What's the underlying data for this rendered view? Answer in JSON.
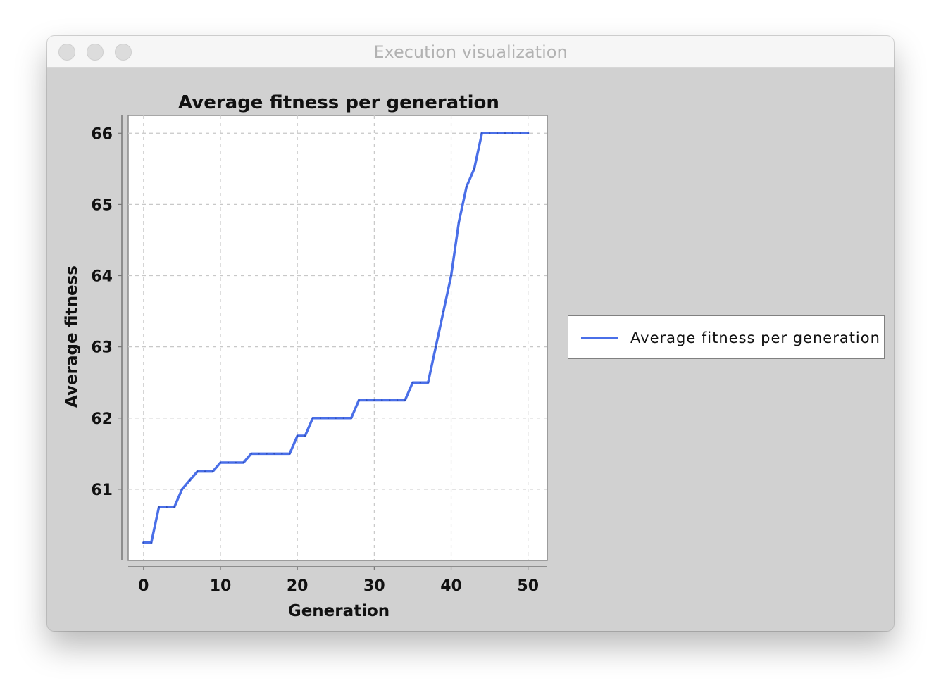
{
  "window": {
    "title": "Execution visualization"
  },
  "chart_data": {
    "type": "line",
    "title": "Average fitness per generation",
    "xlabel": "Generation",
    "ylabel": "Average fitness",
    "xlim": [
      -2,
      52.5
    ],
    "ylim": [
      60,
      66.25
    ],
    "xticks": [
      0,
      10,
      20,
      30,
      40,
      50
    ],
    "yticks": [
      61,
      62,
      63,
      64,
      65,
      66
    ],
    "grid": true,
    "legend": "right",
    "series": [
      {
        "name": "Average fitness per generation",
        "color": "#4a6fe8",
        "x": [
          0,
          1,
          2,
          3,
          4,
          5,
          6,
          7,
          8,
          9,
          10,
          11,
          12,
          13,
          14,
          15,
          16,
          17,
          18,
          19,
          20,
          21,
          22,
          23,
          24,
          25,
          26,
          27,
          28,
          29,
          30,
          31,
          32,
          33,
          34,
          35,
          36,
          37,
          38,
          39,
          40,
          41,
          42,
          43,
          44,
          45,
          46,
          47,
          48,
          49,
          50
        ],
        "y": [
          60.25,
          60.25,
          60.75,
          60.75,
          60.75,
          61.0,
          61.125,
          61.25,
          61.25,
          61.25,
          61.375,
          61.375,
          61.375,
          61.375,
          61.5,
          61.5,
          61.5,
          61.5,
          61.5,
          61.5,
          61.75,
          61.75,
          62.0,
          62.0,
          62.0,
          62.0,
          62.0,
          62.0,
          62.25,
          62.25,
          62.25,
          62.25,
          62.25,
          62.25,
          62.25,
          62.5,
          62.5,
          62.5,
          63.0,
          63.5,
          64.0,
          64.75,
          65.25,
          65.5,
          66.0,
          66.0,
          66.0,
          66.0,
          66.0,
          66.0,
          66.0
        ]
      }
    ]
  }
}
